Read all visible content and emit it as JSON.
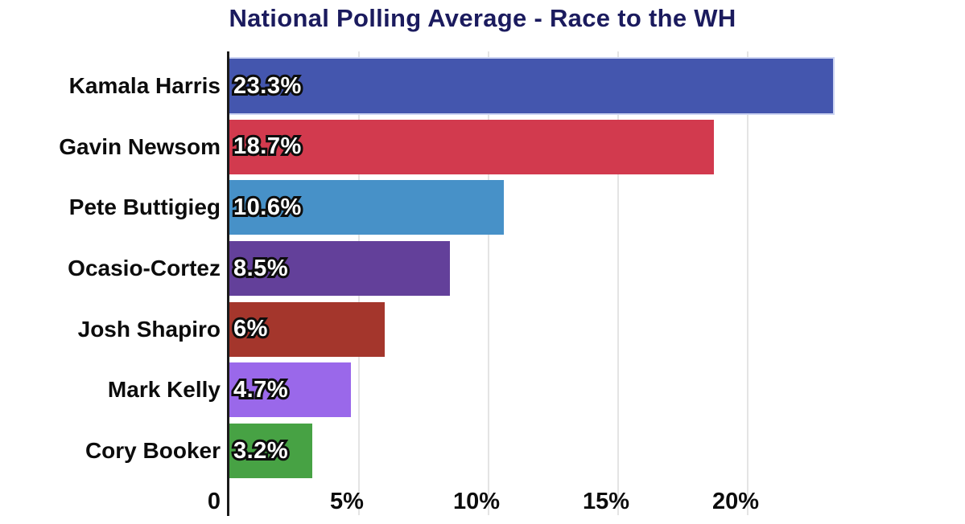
{
  "chart_data": {
    "type": "bar",
    "orientation": "horizontal",
    "title": "National Polling Average - Race to the WH",
    "categories": [
      "Kamala Harris",
      "Gavin Newsom",
      "Pete Buttigieg",
      "Ocasio-Cortez",
      "Josh Shapiro",
      "Mark Kelly",
      "Cory Booker"
    ],
    "values": [
      23.3,
      18.7,
      10.6,
      8.5,
      6,
      4.7,
      3.2
    ],
    "rows": [
      {
        "name": "Kamala Harris",
        "value": 23.3,
        "label": "23.3%",
        "color": "#4456ae"
      },
      {
        "name": "Gavin Newsom",
        "value": 18.7,
        "label": "18.7%",
        "color": "#d23a4e"
      },
      {
        "name": "Pete Buttigieg",
        "value": 10.6,
        "label": "10.6%",
        "color": "#4791c8"
      },
      {
        "name": "Ocasio-Cortez",
        "value": 8.5,
        "label": "8.5%",
        "color": "#63409a"
      },
      {
        "name": "Josh Shapiro",
        "value": 6,
        "label": "6%",
        "color": "#a4362c"
      },
      {
        "name": "Mark Kelly",
        "value": 4.7,
        "label": "4.7%",
        "color": "#9a68ea"
      },
      {
        "name": "Cory Booker",
        "value": 3.2,
        "label": "3.2%",
        "color": "#47a244"
      }
    ],
    "x_ticks": [
      {
        "label": "0",
        "value": 0
      },
      {
        "label": "5%",
        "value": 5
      },
      {
        "label": "10%",
        "value": 10
      },
      {
        "label": "15%",
        "value": 15
      },
      {
        "label": "20%",
        "value": 20
      }
    ],
    "xlim": [
      0,
      28
    ],
    "grid": "vertical-only",
    "legend": "none",
    "colors": {
      "background": "#ffffff",
      "title": "#1b1b5e",
      "label_text": "#0c0c0c",
      "axis_line": "#1a1a1a",
      "gridline": "#e4e4e4",
      "value_text": "#ffffff",
      "value_outline": "#0d0d0d"
    }
  }
}
